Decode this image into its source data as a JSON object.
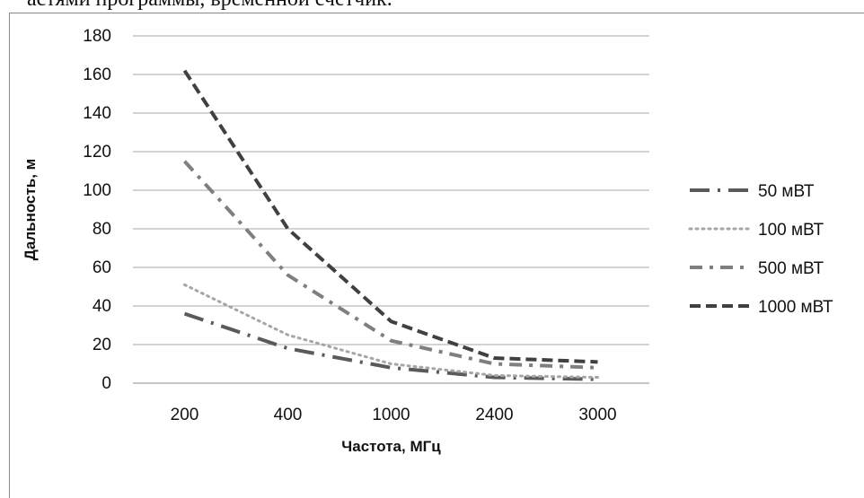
{
  "caption_fragment": "астями программы, временной счетчик.",
  "chart_data": {
    "type": "line",
    "title": "",
    "xlabel": "Частота, МГц",
    "ylabel": "Дальность, м",
    "categories": [
      "200",
      "400",
      "1000",
      "2400",
      "3000"
    ],
    "ylim": [
      0,
      180
    ],
    "yticks": [
      0,
      20,
      40,
      60,
      80,
      100,
      120,
      140,
      160,
      180
    ],
    "grid": true,
    "legend_position": "right",
    "series": [
      {
        "name": "50 мВТ",
        "values": [
          36,
          18,
          8,
          3,
          2
        ],
        "color": "#5a5a5a",
        "dash": "dash-dot-long"
      },
      {
        "name": "100 мВТ",
        "values": [
          51,
          25,
          10,
          4,
          3
        ],
        "color": "#a6a6a6",
        "dash": "dot"
      },
      {
        "name": "500 мВТ",
        "values": [
          115,
          56,
          22,
          10,
          8
        ],
        "color": "#7f7f7f",
        "dash": "dash-dot"
      },
      {
        "name": "1000 мВТ",
        "values": [
          162,
          80,
          32,
          13,
          11
        ],
        "color": "#404040",
        "dash": "dash"
      }
    ]
  }
}
